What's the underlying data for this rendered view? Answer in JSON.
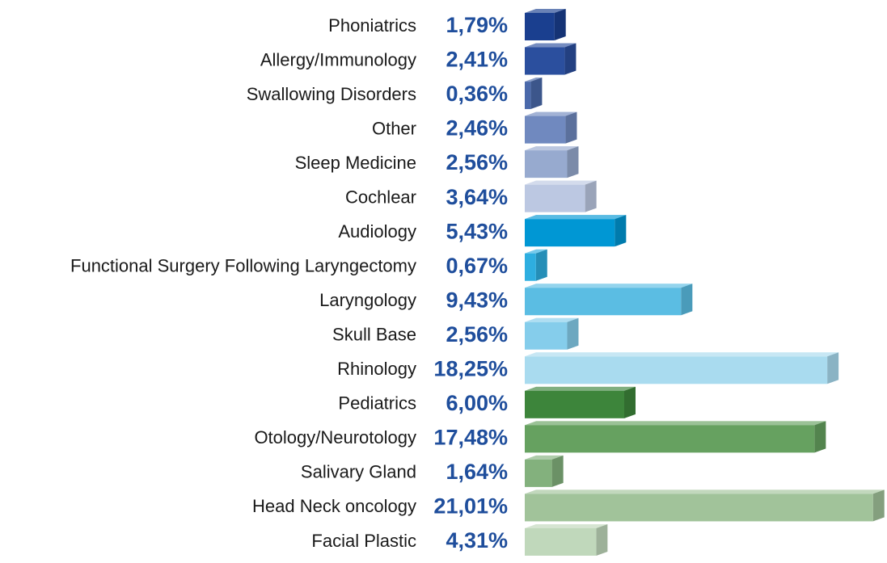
{
  "chart_data": {
    "type": "bar",
    "orientation": "horizontal",
    "categories": [
      "Phoniatrics",
      "Allergy/Immunology",
      "Swallowing Disorders",
      "Other",
      "Sleep Medicine",
      "Cochlear",
      "Audiology",
      "Functional Surgery Following Laryngectomy",
      "Laryngology",
      "Skull Base",
      "Rhinology",
      "Pediatrics",
      "Otology/Neurotology",
      "Salivary Gland",
      "Head Neck oncology",
      "Facial Plastic"
    ],
    "values": [
      1.79,
      2.41,
      0.36,
      2.46,
      2.56,
      3.64,
      5.43,
      0.67,
      9.43,
      2.56,
      18.25,
      6.0,
      17.48,
      1.64,
      21.01,
      4.31
    ],
    "value_labels": [
      "1,79%",
      "2,41%",
      "0,36%",
      "2,46%",
      "2,56%",
      "3,64%",
      "5,43%",
      "0,67%",
      "9,43%",
      "2,56%",
      "18,25%",
      "6,00%",
      "17,48%",
      "1,64%",
      "21,01%",
      "4,31%"
    ],
    "colors": [
      "#1a3f8f",
      "#2b4f9e",
      "#4a69aa",
      "#7089bf",
      "#97aacf",
      "#bcc8e2",
      "#0097d4",
      "#2eaee0",
      "#5bbde3",
      "#85cdeb",
      "#a9dbef",
      "#3d853b",
      "#66a160",
      "#83b17d",
      "#a1c39a",
      "#c0d8bb"
    ]
  }
}
